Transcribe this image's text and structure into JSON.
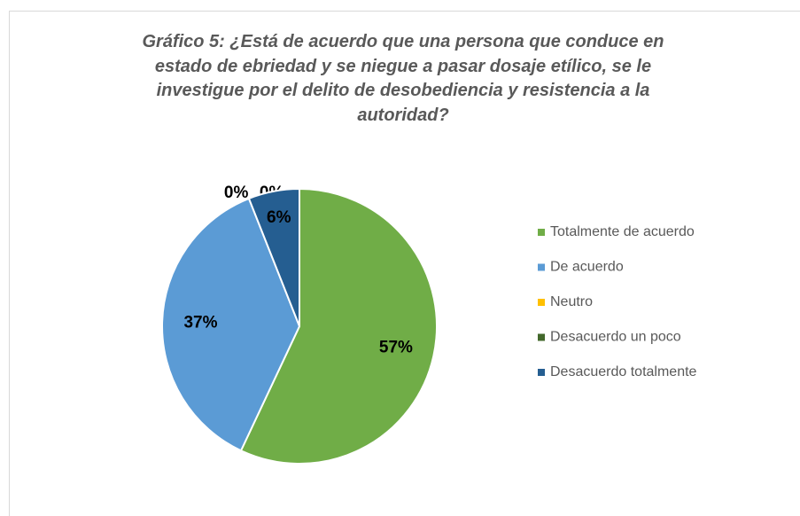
{
  "chart_data": {
    "type": "pie",
    "title": "Gráfico 5: ¿Está de acuerdo que una persona que conduce en estado de ebriedad y se niegue a pasar dosaje etílico, se le investigue por el delito de desobediencia y resistencia a la autoridad?",
    "categories": [
      "Totalmente de acuerdo",
      "De acuerdo",
      "Neutro",
      "Desacuerdo un poco",
      "Desacuerdo totalmente"
    ],
    "values": [
      57,
      37,
      0,
      0,
      6
    ],
    "value_labels": [
      "57%",
      "37%",
      "0%",
      "0%",
      "6%"
    ],
    "colors": [
      "#70ad47",
      "#5b9bd5",
      "#ffc000",
      "#43682b",
      "#255e91"
    ],
    "legend": "right"
  }
}
